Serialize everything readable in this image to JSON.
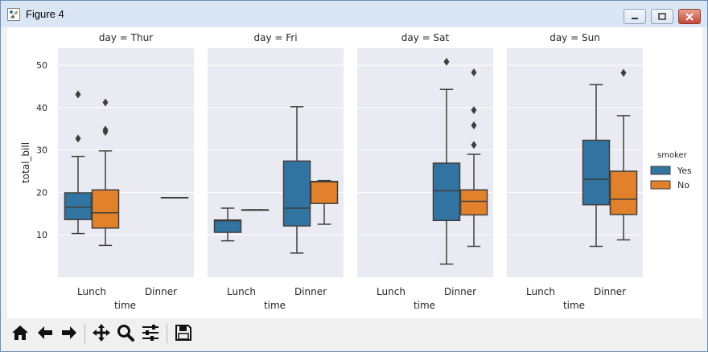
{
  "window": {
    "title": "Figure 4",
    "buttons": [
      "minimize",
      "maximize",
      "close"
    ]
  },
  "toolbar": {
    "buttons": [
      {
        "name": "home-icon",
        "title": "Home"
      },
      {
        "name": "back-icon",
        "title": "Back"
      },
      {
        "name": "forward-icon",
        "title": "Forward"
      },
      {
        "name": "pan-icon",
        "title": "Pan"
      },
      {
        "name": "zoom-icon",
        "title": "Zoom"
      },
      {
        "name": "configure-subplots-icon",
        "title": "Subplots"
      },
      {
        "name": "save-icon",
        "title": "Save"
      }
    ]
  },
  "colors": {
    "Yes": "#3274a1",
    "No": "#e1812c",
    "axes_bg": "#eaeaf2",
    "grid": "#ffffff",
    "line": "#3f3f3f"
  },
  "chart_data": {
    "type": "box",
    "ylabel": "total_bill",
    "xlabel": "time",
    "categories": [
      "Lunch",
      "Dinner"
    ],
    "yticks": [
      10,
      20,
      30,
      40,
      50
    ],
    "ylim": [
      0,
      54
    ],
    "legend": {
      "title": "smoker",
      "entries": [
        "Yes",
        "No"
      ],
      "placement": "right"
    },
    "grid": true,
    "panels": [
      {
        "title": "day = Thur",
        "boxes": [
          {
            "time": "Lunch",
            "smoker": "Yes",
            "whislo": 10.3,
            "q1": 13.6,
            "med": 16.5,
            "q3": 19.9,
            "whishi": 28.5,
            "fliers": [
              32.7,
              43.1
            ]
          },
          {
            "time": "Lunch",
            "smoker": "No",
            "whislo": 7.5,
            "q1": 11.6,
            "med": 15.2,
            "q3": 20.6,
            "whishi": 29.8,
            "fliers": [
              34.3,
              34.8,
              41.2
            ]
          },
          {
            "time": "Dinner",
            "smoker": "No",
            "whislo": 18.8,
            "q1": 18.8,
            "med": 18.8,
            "q3": 18.8,
            "whishi": 18.8,
            "fliers": []
          }
        ]
      },
      {
        "title": "day = Fri",
        "boxes": [
          {
            "time": "Lunch",
            "smoker": "Yes",
            "whislo": 8.6,
            "q1": 10.6,
            "med": 13.3,
            "q3": 13.5,
            "whishi": 16.3,
            "fliers": []
          },
          {
            "time": "Lunch",
            "smoker": "No",
            "whislo": 15.9,
            "q1": 15.9,
            "med": 15.9,
            "q3": 15.9,
            "whishi": 15.9,
            "fliers": []
          },
          {
            "time": "Dinner",
            "smoker": "Yes",
            "whislo": 5.7,
            "q1": 12.1,
            "med": 16.3,
            "q3": 27.4,
            "whishi": 40.2,
            "fliers": []
          },
          {
            "time": "Dinner",
            "smoker": "No",
            "whislo": 12.5,
            "q1": 17.4,
            "med": 22.5,
            "q3": 22.6,
            "whishi": 22.8,
            "fliers": []
          }
        ]
      },
      {
        "title": "day = Sat",
        "boxes": [
          {
            "time": "Dinner",
            "smoker": "Yes",
            "whislo": 3.1,
            "q1": 13.4,
            "med": 20.4,
            "q3": 26.9,
            "whishi": 44.3,
            "fliers": [
              50.8
            ]
          },
          {
            "time": "Dinner",
            "smoker": "No",
            "whislo": 7.3,
            "q1": 14.7,
            "med": 17.9,
            "q3": 20.6,
            "whishi": 29.0,
            "fliers": [
              31.2,
              35.8,
              39.4,
              48.3
            ]
          }
        ]
      },
      {
        "title": "day = Sun",
        "boxes": [
          {
            "time": "Dinner",
            "smoker": "Yes",
            "whislo": 7.3,
            "q1": 17.1,
            "med": 23.1,
            "q3": 32.3,
            "whishi": 45.4,
            "fliers": []
          },
          {
            "time": "Dinner",
            "smoker": "No",
            "whislo": 8.8,
            "q1": 14.8,
            "med": 18.4,
            "q3": 25.0,
            "whishi": 38.1,
            "fliers": [
              48.2
            ]
          }
        ]
      }
    ]
  }
}
